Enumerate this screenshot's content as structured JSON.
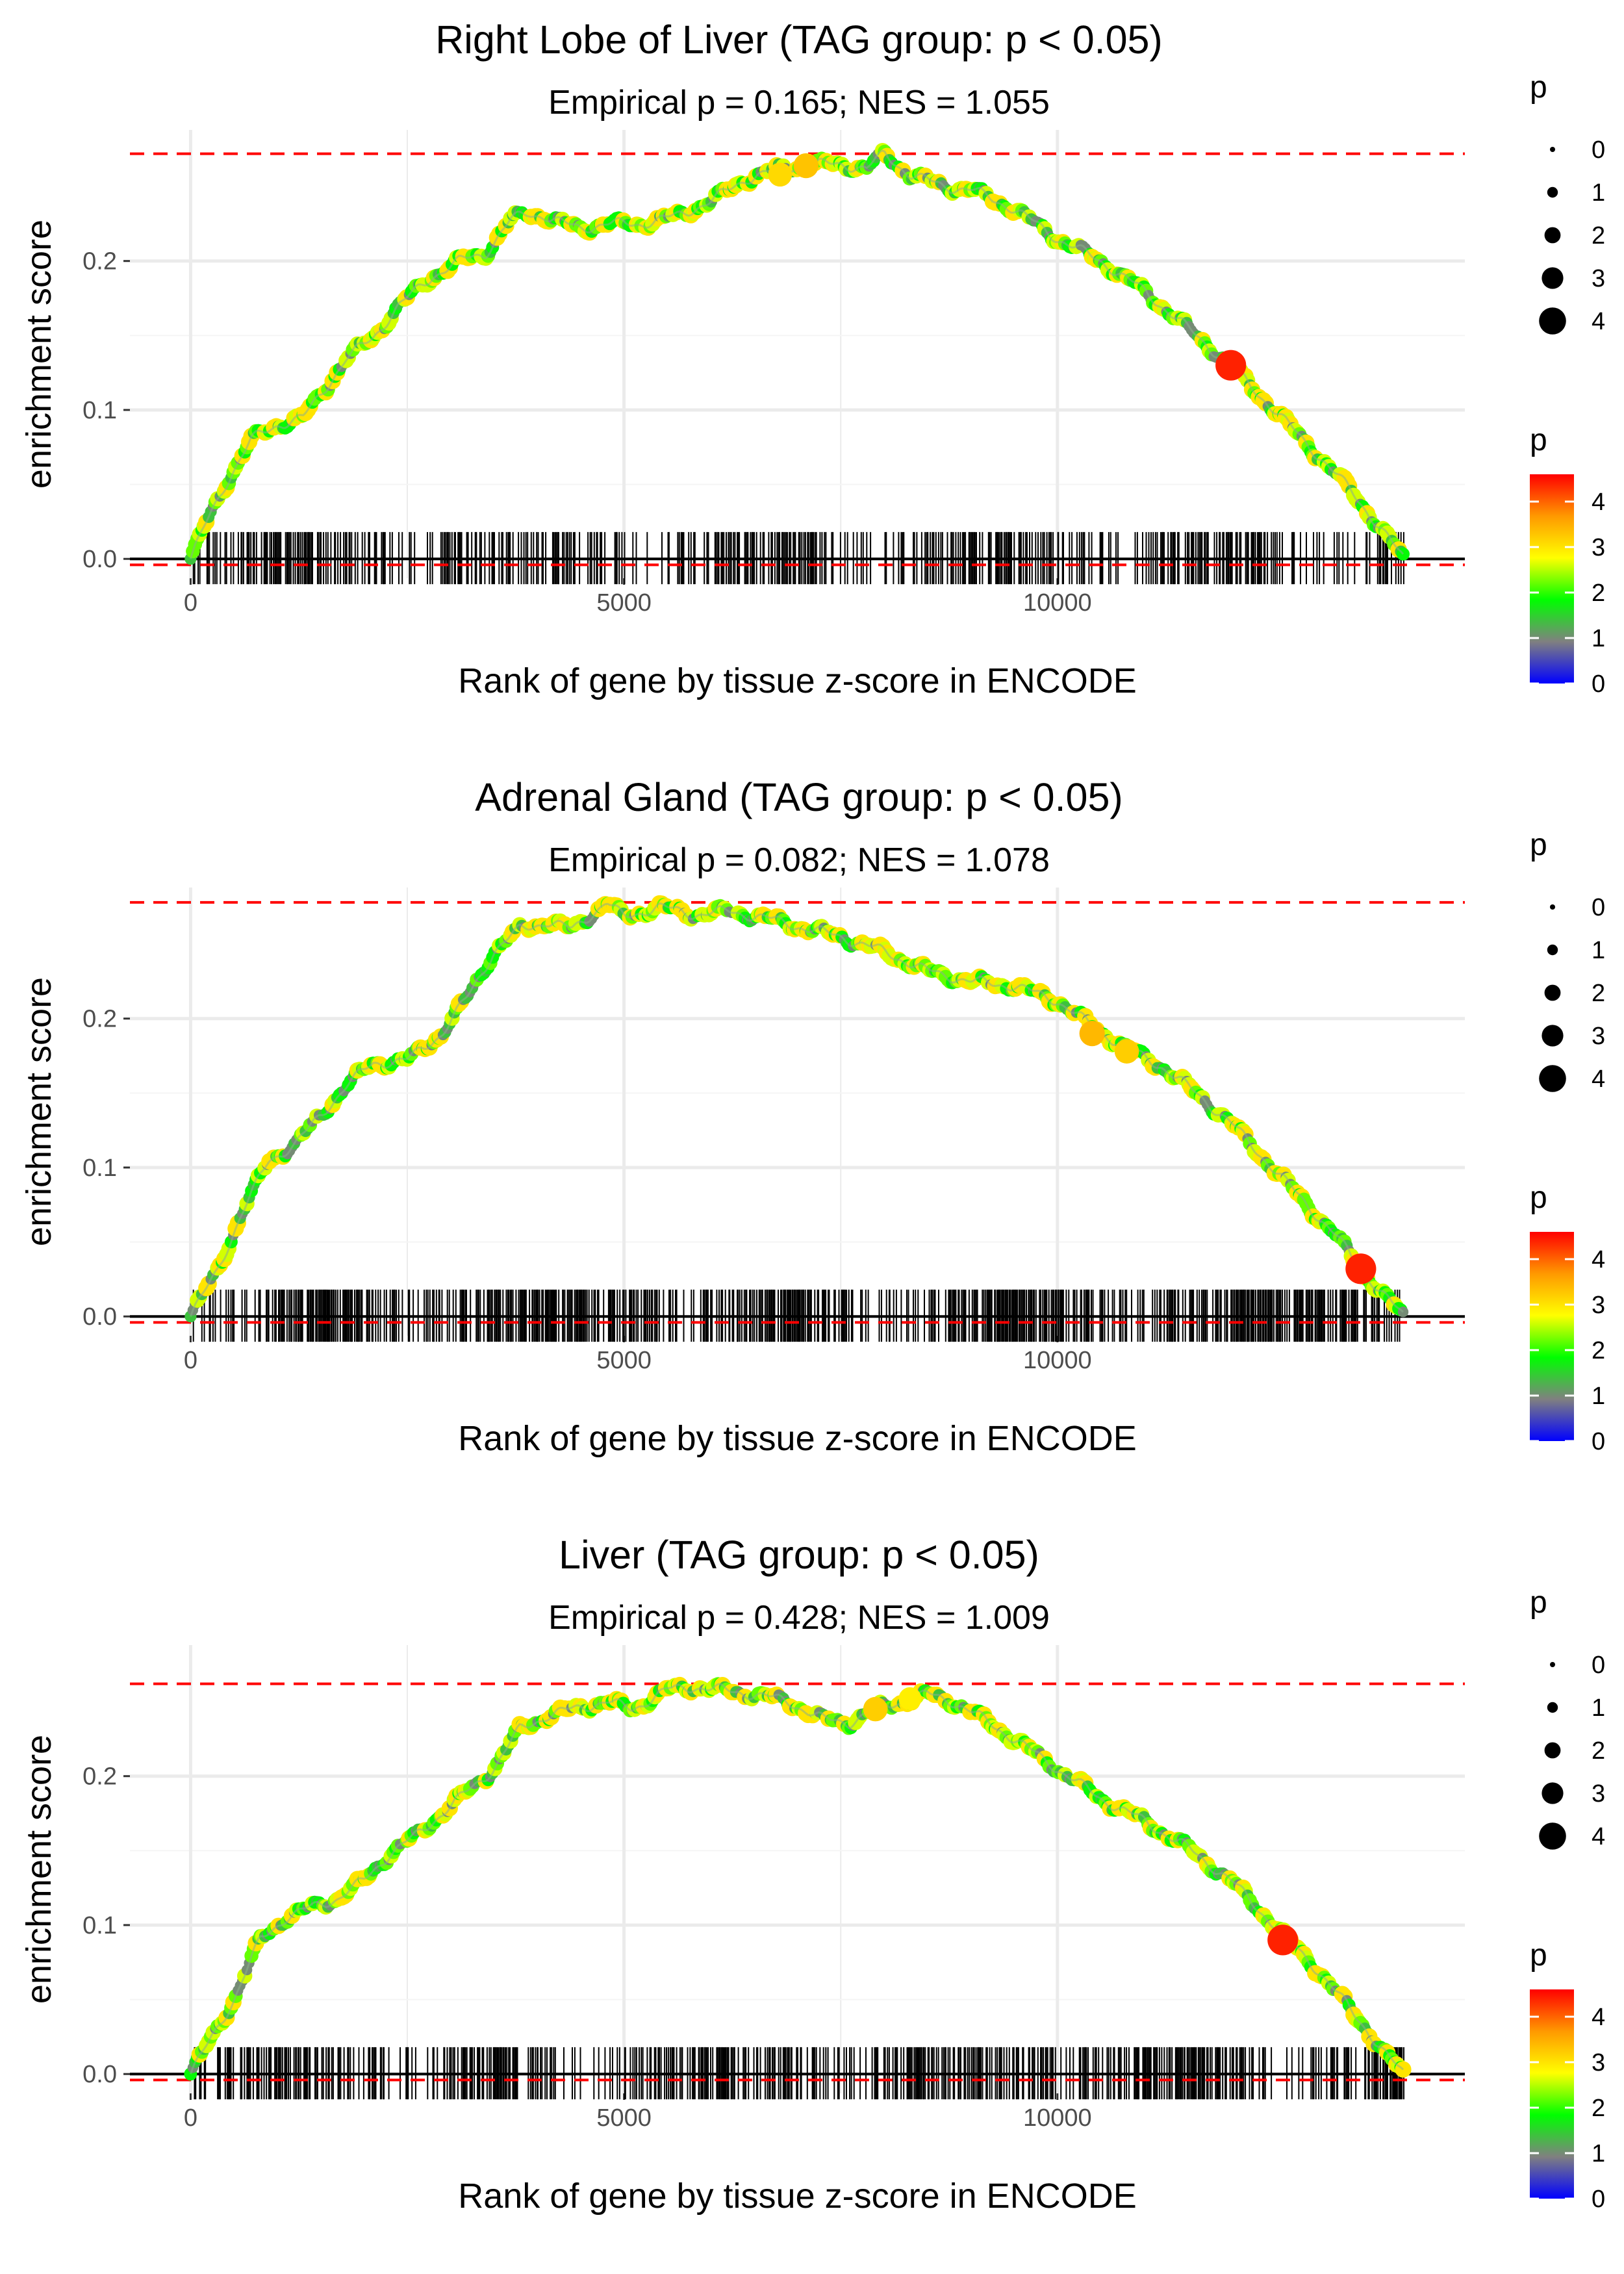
{
  "chart_data": [
    {
      "type": "line",
      "title": "Right Lobe of Liver (TAG group: p < 0.05)",
      "subtitle": "Empirical p = 0.165; NES = 1.055",
      "xlabel": "Rank of gene by tissue z-score in ENCODE",
      "ylabel": "enrichment score",
      "xlim": [
        -700,
        14700
      ],
      "ylim": [
        -0.013,
        0.288
      ],
      "x_ticks": [
        0,
        5000,
        10000
      ],
      "x_tick_labels": [
        "0",
        "5000",
        "10000"
      ],
      "y_ticks": [
        0.0,
        0.1,
        0.2
      ],
      "y_tick_labels": [
        "0.0",
        "0.1",
        "0.2"
      ],
      "max_es": 0.272,
      "min_es": -0.004,
      "rug_seed": 11,
      "rug_density": 0.55,
      "series": [
        {
          "name": "enrichment score",
          "x": [
            0,
            150,
            400,
            700,
            1000,
            1300,
            1500,
            1800,
            2100,
            2400,
            2800,
            3100,
            3400,
            3700,
            3900,
            4100,
            4300,
            4500,
            4800,
            5200,
            5600,
            6000,
            6400,
            6800,
            7200,
            7500,
            7800,
            8000,
            8300,
            8700,
            9000,
            9500,
            10000,
            10500,
            11000,
            11500,
            12000,
            12500,
            13000,
            13400,
            13800,
            14000
          ],
          "values": [
            0.0,
            0.02,
            0.05,
            0.08,
            0.09,
            0.095,
            0.11,
            0.135,
            0.148,
            0.17,
            0.19,
            0.2,
            0.205,
            0.228,
            0.232,
            0.23,
            0.225,
            0.222,
            0.225,
            0.225,
            0.23,
            0.24,
            0.255,
            0.262,
            0.265,
            0.265,
            0.262,
            0.272,
            0.258,
            0.25,
            0.248,
            0.235,
            0.215,
            0.2,
            0.18,
            0.155,
            0.13,
            0.1,
            0.07,
            0.045,
            0.015,
            0.0
          ]
        }
      ],
      "highlight_points": [
        {
          "x": 6800,
          "y": 0.258,
          "p": 3.1
        },
        {
          "x": 7100,
          "y": 0.264,
          "p": 3.3
        },
        {
          "x": 12000,
          "y": 0.13,
          "p": 4.4
        }
      ]
    },
    {
      "type": "line",
      "title": "Adrenal Gland (TAG group: p < 0.05)",
      "subtitle": "Empirical p = 0.082; NES = 1.078",
      "xlabel": "Rank of gene by tissue z-score in ENCODE",
      "ylabel": "enrichment score",
      "xlim": [
        -700,
        14700
      ],
      "ylim": [
        -0.013,
        0.288
      ],
      "x_ticks": [
        0,
        5000,
        10000
      ],
      "x_tick_labels": [
        "0",
        "5000",
        "10000"
      ],
      "y_ticks": [
        0.0,
        0.1,
        0.2
      ],
      "y_tick_labels": [
        "0.0",
        "0.1",
        "0.2"
      ],
      "max_es": 0.278,
      "min_es": -0.004,
      "rug_seed": 23,
      "rug_density": 0.7,
      "series": [
        {
          "name": "enrichment score",
          "x": [
            0,
            300,
            600,
            900,
            1200,
            1500,
            1800,
            2100,
            2500,
            2900,
            3200,
            3500,
            3800,
            4100,
            4400,
            4800,
            5000,
            5400,
            5800,
            6200,
            6600,
            7000,
            7500,
            8000,
            8500,
            9000,
            9500,
            10000,
            10400,
            10800,
            11200,
            11600,
            12000,
            12400,
            12800,
            13200,
            13500,
            13800,
            14000
          ],
          "values": [
            0.0,
            0.03,
            0.07,
            0.105,
            0.115,
            0.135,
            0.155,
            0.17,
            0.172,
            0.19,
            0.215,
            0.245,
            0.26,
            0.265,
            0.26,
            0.278,
            0.268,
            0.275,
            0.27,
            0.272,
            0.268,
            0.262,
            0.255,
            0.245,
            0.232,
            0.225,
            0.222,
            0.212,
            0.195,
            0.18,
            0.168,
            0.15,
            0.13,
            0.105,
            0.08,
            0.055,
            0.032,
            0.012,
            0.0
          ]
        }
      ],
      "highlight_points": [
        {
          "x": 10400,
          "y": 0.19,
          "p": 3.4
        },
        {
          "x": 10800,
          "y": 0.178,
          "p": 3.2
        },
        {
          "x": 13500,
          "y": 0.032,
          "p": 4.4
        }
      ]
    },
    {
      "type": "line",
      "title": "Liver (TAG group: p < 0.05)",
      "subtitle": "Empirical p = 0.428; NES = 1.009",
      "xlabel": "Rank of gene by tissue z-score in ENCODE",
      "ylabel": "enrichment score",
      "xlim": [
        -700,
        14700
      ],
      "ylim": [
        -0.013,
        0.288
      ],
      "x_ticks": [
        0,
        5000,
        10000
      ],
      "x_tick_labels": [
        "0",
        "5000",
        "10000"
      ],
      "y_ticks": [
        0.0,
        0.1,
        0.2
      ],
      "y_tick_labels": [
        "0.0",
        "0.1",
        "0.2"
      ],
      "max_es": 0.262,
      "min_es": -0.004,
      "rug_seed": 37,
      "rug_density": 0.6,
      "series": [
        {
          "name": "enrichment score",
          "x": [
            0,
            200,
            500,
            800,
            1100,
            1400,
            1700,
            2000,
            2300,
            2600,
            2900,
            3200,
            3500,
            3800,
            4100,
            4400,
            4800,
            5100,
            5500,
            5800,
            6100,
            6500,
            6900,
            7300,
            7600,
            7900,
            8200,
            8500,
            8800,
            9100,
            9500,
            10000,
            10500,
            11000,
            11500,
            12000,
            12500,
            13000,
            13500,
            13800,
            14000
          ],
          "values": [
            0.0,
            0.02,
            0.05,
            0.09,
            0.105,
            0.112,
            0.118,
            0.13,
            0.148,
            0.16,
            0.175,
            0.19,
            0.205,
            0.232,
            0.24,
            0.245,
            0.25,
            0.245,
            0.258,
            0.26,
            0.258,
            0.255,
            0.25,
            0.238,
            0.236,
            0.245,
            0.25,
            0.255,
            0.25,
            0.24,
            0.225,
            0.205,
            0.185,
            0.17,
            0.152,
            0.13,
            0.1,
            0.07,
            0.035,
            0.012,
            0.0
          ]
        }
      ],
      "highlight_points": [
        {
          "x": 7900,
          "y": 0.245,
          "p": 3.2
        },
        {
          "x": 8300,
          "y": 0.252,
          "p": 2.9
        },
        {
          "x": 12600,
          "y": 0.09,
          "p": 4.4
        }
      ]
    }
  ],
  "legend": {
    "size_title": "p",
    "size_labels": [
      "0",
      "1",
      "2",
      "3",
      "4"
    ],
    "size_values": [
      0,
      1,
      2,
      3,
      4
    ],
    "color_title": "p",
    "color_labels": [
      "4",
      "3",
      "2",
      "1",
      "0"
    ],
    "color_values": [
      4,
      3,
      2,
      1,
      0
    ],
    "color_range": [
      0,
      4.6
    ],
    "color_stops": [
      "#0000ff",
      "#808080",
      "#00ff00",
      "#ffff00",
      "#ff9900",
      "#ff0000"
    ]
  },
  "colors": {
    "threshold_line": "#ff0000",
    "zero_line": "#000000",
    "grid": "#ebebeb",
    "rug": "#000000"
  }
}
